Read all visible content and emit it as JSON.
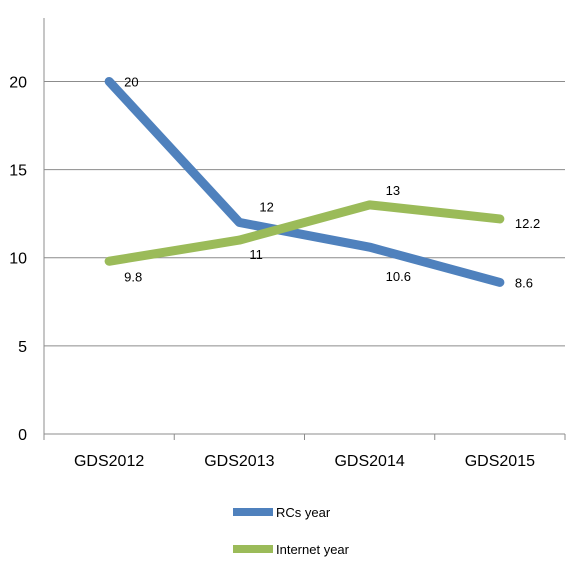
{
  "chart_data": {
    "type": "line",
    "title": "",
    "xlabel": "",
    "ylabel": "",
    "categories": [
      "GDS2012",
      "GDS2013",
      "GDS2014",
      "GDS2015"
    ],
    "ylim": [
      0,
      20
    ],
    "yticks": [
      0,
      5,
      10,
      15,
      20
    ],
    "grid": true,
    "legend_position": "bottom",
    "series": [
      {
        "name": "RCs year",
        "color": "#4f81bd",
        "values": [
          20,
          12,
          10.6,
          8.6
        ],
        "labels": [
          "20",
          "12",
          "10.6",
          "8.6"
        ]
      },
      {
        "name": "Internet year",
        "color": "#9bbb59",
        "values": [
          9.8,
          11,
          13,
          12.2
        ],
        "labels": [
          "9.8",
          "11",
          "13",
          "12.2"
        ]
      }
    ]
  }
}
